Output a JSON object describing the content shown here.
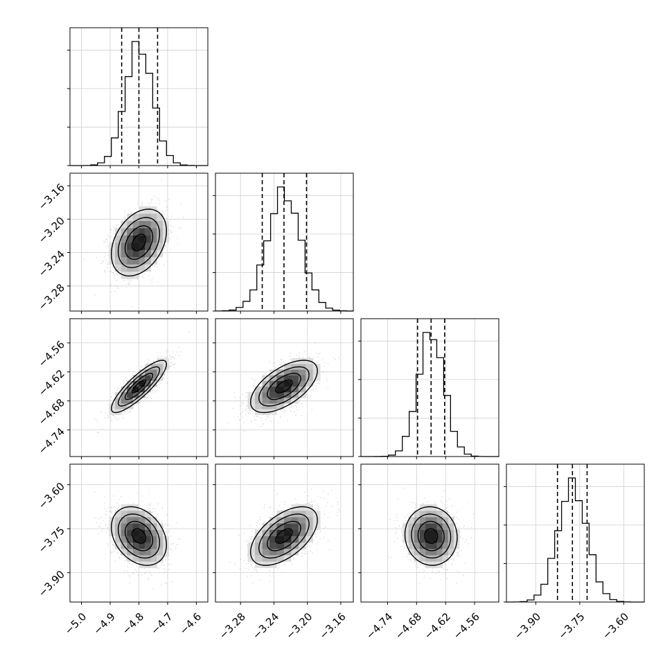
{
  "chart_data": {
    "type": "corner",
    "grid": true,
    "variables": [
      {
        "range": [
          -5.04,
          -4.56
        ],
        "ticks": [
          -5.0,
          -4.9,
          -4.8,
          -4.7,
          -4.6
        ],
        "tick_labels": [
          "−5.0",
          "−4.9",
          "−4.8",
          "−4.7",
          "−4.6"
        ],
        "mean": -4.8,
        "sigma": 0.048,
        "quantiles": [
          -4.86,
          -4.8,
          -4.735
        ],
        "hist_ticks": [
          0,
          1000,
          2000,
          3000
        ]
      },
      {
        "range": [
          -3.31,
          -3.145
        ],
        "ticks": [
          -3.28,
          -3.24,
          -3.2,
          -3.16
        ],
        "tick_labels": [
          "−3.28",
          "−3.24",
          "−3.20",
          "−3.16"
        ],
        "mean": -3.228,
        "sigma": 0.02,
        "quantiles": [
          -3.254,
          -3.228,
          -3.201
        ],
        "hist_ticks": [
          0,
          1000,
          2000,
          3000
        ]
      },
      {
        "range": [
          -4.795,
          -4.51
        ],
        "ticks": [
          -4.74,
          -4.68,
          -4.62,
          -4.56
        ],
        "tick_labels": [
          "−4.74",
          "−4.68",
          "−4.62",
          "−4.56"
        ],
        "mean": -4.65,
        "sigma": 0.027,
        "quantiles": [
          -4.678,
          -4.65,
          -4.622
        ],
        "hist_ticks": [
          0,
          1000,
          2000,
          3000
        ]
      },
      {
        "range": [
          -4.0,
          -3.53
        ],
        "ticks": [
          -3.9,
          -3.75,
          -3.6
        ],
        "tick_labels": [
          "−3.90",
          "−3.75",
          "−3.60"
        ],
        "mean": -3.775,
        "sigma": 0.05,
        "quantiles": [
          -3.826,
          -3.775,
          -3.725
        ],
        "hist_ticks": [
          0,
          1000,
          2000,
          3000
        ]
      }
    ],
    "correlations": [
      {
        "pair": [
          0,
          1
        ],
        "rho": 0.35
      },
      {
        "pair": [
          0,
          2
        ],
        "rho": 0.85
      },
      {
        "pair": [
          1,
          2
        ],
        "rho": 0.6
      },
      {
        "pair": [
          0,
          3
        ],
        "rho": -0.3
      },
      {
        "pair": [
          1,
          3
        ],
        "rho": 0.55
      },
      {
        "pair": [
          2,
          3
        ],
        "rho": -0.05
      }
    ],
    "colors": {
      "line": "#000000",
      "points": "#bbbbbb",
      "grid": "#cfcfcf"
    }
  }
}
